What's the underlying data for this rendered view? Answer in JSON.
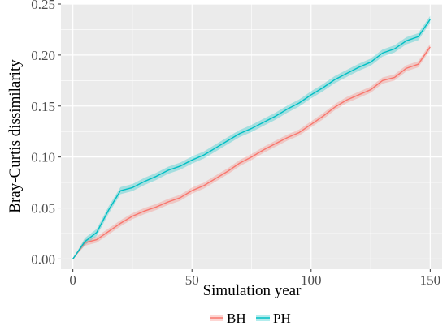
{
  "chart_data": {
    "type": "line",
    "title": "",
    "xlabel": "Simulation year",
    "ylabel": "Bray-Curtis dissimilarity",
    "xlim": [
      -5,
      155
    ],
    "ylim": [
      -0.01,
      0.25
    ],
    "x_ticks": [
      0,
      50,
      100,
      150
    ],
    "x_tick_labels": [
      "0",
      "50",
      "100",
      "150"
    ],
    "y_ticks": [
      0.0,
      0.05,
      0.1,
      0.15,
      0.2,
      0.25
    ],
    "y_tick_labels": [
      "0.00",
      "0.05",
      "0.10",
      "0.15",
      "0.20",
      "0.25"
    ],
    "grid": true,
    "legend_position": "bottom",
    "background": "#ebebeb",
    "x": [
      0,
      5,
      10,
      15,
      20,
      25,
      30,
      35,
      40,
      45,
      50,
      55,
      60,
      65,
      70,
      75,
      80,
      85,
      90,
      95,
      100,
      105,
      110,
      115,
      120,
      125,
      130,
      135,
      140,
      145,
      150
    ],
    "series": [
      {
        "name": "BH",
        "color": "#f8766d",
        "values": [
          0.0,
          0.016,
          0.019,
          0.027,
          0.035,
          0.042,
          0.047,
          0.051,
          0.056,
          0.06,
          0.067,
          0.072,
          0.079,
          0.086,
          0.094,
          0.1,
          0.107,
          0.113,
          0.119,
          0.124,
          0.132,
          0.14,
          0.149,
          0.156,
          0.161,
          0.166,
          0.175,
          0.178,
          0.187,
          0.191,
          0.208
        ],
        "band": 0.003
      },
      {
        "name": "PH",
        "color": "#00bfc4",
        "values": [
          0.0,
          0.017,
          0.026,
          0.048,
          0.067,
          0.07,
          0.076,
          0.081,
          0.087,
          0.091,
          0.097,
          0.102,
          0.109,
          0.116,
          0.123,
          0.128,
          0.134,
          0.14,
          0.147,
          0.153,
          0.161,
          0.168,
          0.176,
          0.182,
          0.188,
          0.193,
          0.202,
          0.206,
          0.214,
          0.218,
          0.235
        ],
        "band": 0.0035
      }
    ]
  }
}
